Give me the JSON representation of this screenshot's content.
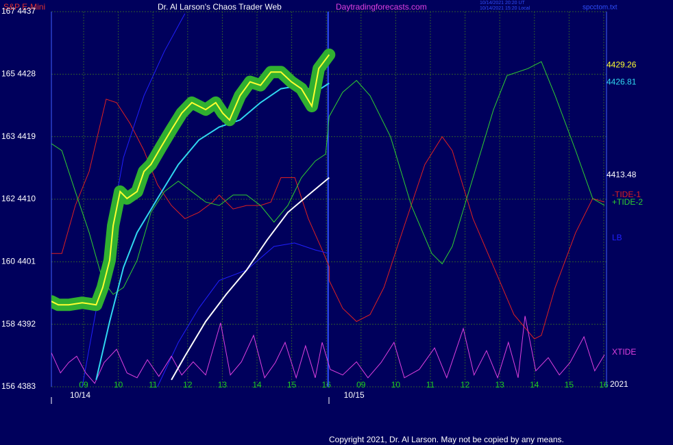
{
  "chart_data": {
    "type": "line",
    "symbol": "S&P E-Mini",
    "title": "Dr. Al Larson's Chaos Trader Web",
    "site": "Daytradingforecasts.com",
    "timestamps": [
      "10/14/2021 20:20 UT",
      "10/14/2021 15:20 Local"
    ],
    "file": "spcctom.txt",
    "year": "2021",
    "copyright": "Copyright 2021, Dr. Al Larson. May not be copied by any means.",
    "date_labels": [
      {
        "value": 8.9,
        "label": "10/14"
      },
      {
        "value": 16.8,
        "label": "10/15"
      }
    ],
    "xlim": [
      8.07,
      24.08
    ],
    "xticks": [
      {
        "value": 9,
        "label": "09"
      },
      10,
      11,
      12,
      13,
      14,
      15,
      16,
      {
        "value": 17,
        "label": "09"
      },
      {
        "value": 18,
        "label": "10"
      },
      {
        "value": 19,
        "label": "11"
      },
      {
        "value": 20,
        "label": "12"
      },
      {
        "value": 21,
        "label": "13"
      },
      {
        "value": 22,
        "label": "14"
      },
      {
        "value": 23,
        "label": "15"
      },
      {
        "value": 24,
        "label": "16"
      }
    ],
    "ylim": [
      4383,
      4437
    ],
    "yticks": [
      {
        "value": 4383,
        "label": "156 4383"
      },
      {
        "value": 4392,
        "label": "158 4392"
      },
      {
        "value": 4401,
        "label": "160 4401"
      },
      {
        "value": 4410,
        "label": "162 4410"
      },
      {
        "value": 4419,
        "label": "163 4419"
      },
      {
        "value": 4428,
        "label": "165 4428"
      },
      {
        "value": 4437,
        "label": "167 4437"
      }
    ],
    "grid": true,
    "series": [
      {
        "name": "-TIDE-1",
        "color": "#e02020",
        "width": 1,
        "x": [
          8.07,
          8.37,
          8.76,
          9.16,
          9.65,
          9.95,
          10.34,
          10.74,
          11.13,
          11.53,
          11.92,
          12.32,
          12.72,
          12.91,
          13.31,
          13.7,
          14.1,
          14.4,
          14.69,
          15.09,
          15.48,
          15.88,
          16.08,
          16.08,
          16.47,
          16.87,
          17.26,
          17.66,
          18.25,
          18.84,
          19.34,
          19.63,
          20.23,
          20.82,
          21.41,
          22.0,
          22.2,
          22.6,
          23.19,
          23.68,
          24.02
        ],
        "values": [
          4402.2,
          4402.2,
          4409.1,
          4414.0,
          4424.4,
          4423.9,
          4420.9,
          4417.0,
          4412.1,
          4409.1,
          4407.2,
          4408.1,
          4409.6,
          4410.6,
          4408.6,
          4409.1,
          4409.1,
          4409.6,
          4413.1,
          4413.1,
          4407.2,
          4402.7,
          4400.3,
          4398.3,
          4394.3,
          4392.4,
          4393.4,
          4397.3,
          4406.2,
          4415.0,
          4419.0,
          4417.0,
          4407.2,
          4400.3,
          4393.4,
          4389.9,
          4390.4,
          4397.3,
          4405.2,
          4410.1,
          4409.6
        ]
      },
      {
        "name": "+TIDE-2",
        "color": "#30d030",
        "width": 1,
        "x": [
          8.07,
          8.37,
          8.76,
          9.16,
          9.55,
          9.85,
          10.15,
          10.54,
          10.94,
          11.33,
          11.73,
          12.12,
          12.52,
          12.91,
          13.31,
          13.7,
          14.1,
          14.49,
          14.89,
          15.28,
          15.68,
          15.98,
          16.08,
          16.47,
          16.87,
          17.26,
          17.85,
          18.45,
          19.04,
          19.34,
          19.63,
          20.23,
          20.82,
          21.21,
          21.81,
          22.2,
          22.6,
          23.19,
          23.68,
          24.02
        ],
        "values": [
          4418.0,
          4417.0,
          4411.1,
          4405.2,
          4398.3,
          4396.3,
          4397.3,
          4401.2,
          4408.1,
          4411.1,
          4412.6,
          4411.1,
          4409.6,
          4409.1,
          4410.6,
          4410.6,
          4409.1,
          4406.7,
          4409.1,
          4413.1,
          4415.5,
          4416.5,
          4421.9,
          4425.4,
          4427.1,
          4424.9,
          4419.0,
          4409.1,
          4402.2,
          4400.7,
          4403.2,
          4413.1,
          4422.9,
          4427.8,
          4428.8,
          4429.8,
          4424.9,
          4417.0,
          4410.1,
          4409.1
        ]
      },
      {
        "name": "LB",
        "color": "#2020ff",
        "width": 1,
        "x": [
          8.96,
          9.55,
          10.15,
          10.74,
          11.33,
          11.92,
          null,
          11.13,
          11.73,
          12.32,
          12.91,
          13.7,
          14.49,
          15.08,
          15.68,
          16.08
        ],
        "values": [
          4383.0,
          4399.3,
          4416.0,
          4424.9,
          4431.3,
          4436.7,
          null,
          4383.0,
          4389.4,
          4394.3,
          4398.3,
          4399.8,
          4403.2,
          4403.7,
          4402.7,
          4402.2
        ]
      },
      {
        "name": "XTIDE",
        "color": "#e040e0",
        "width": 1,
        "x": [
          8.07,
          8.33,
          8.57,
          8.8,
          9.06,
          9.32,
          9.59,
          9.95,
          10.25,
          10.54,
          10.84,
          11.17,
          11.53,
          11.83,
          12.16,
          12.52,
          12.95,
          13.23,
          13.55,
          13.9,
          14.22,
          14.53,
          14.81,
          15.13,
          15.4,
          15.68,
          15.88,
          16.11,
          16.47,
          16.87,
          17.2,
          17.58,
          17.95,
          18.25,
          18.68,
          19.12,
          19.47,
          19.95,
          20.26,
          20.62,
          20.94,
          21.25,
          21.53,
          21.73,
          22.04,
          22.4,
          22.72,
          23.03,
          23.43,
          23.74,
          24.02
        ],
        "values": [
          4387.9,
          4385.0,
          4386.5,
          4387.4,
          4385.0,
          4383.5,
          4386.5,
          4388.4,
          4385.0,
          4384.3,
          4386.9,
          4384.5,
          4387.4,
          4384.7,
          4386.6,
          4384.7,
          4392.2,
          4384.7,
          4386.6,
          4390.4,
          4384.3,
          4386.5,
          4389.4,
          4384.3,
          4388.9,
          4384.3,
          4389.4,
          4385.5,
          4384.7,
          4386.6,
          4384.3,
          4386.5,
          4389.4,
          4384.3,
          4385.5,
          4388.6,
          4384.3,
          4391.4,
          4384.7,
          4388.2,
          4384.3,
          4389.4,
          4384.3,
          4393.2,
          4385.3,
          4387.2,
          4384.7,
          4386.5,
          4390.2,
          4385.3,
          4387.6
        ]
      },
      {
        "color": "#ffffff",
        "width": 2,
        "last": 4413.48,
        "x": [
          11.53,
          11.92,
          12.52,
          13.11,
          13.7,
          14.3,
          14.89,
          15.48,
          16.08
        ],
        "values": [
          4384.0,
          4387.4,
          4392.4,
          4396.3,
          4399.8,
          4404.2,
          4408.1,
          4410.6,
          4413.1
        ]
      },
      {
        "color": "#30d8f0",
        "width": 2,
        "last": 4426.81,
        "x": [
          9.36,
          9.75,
          10.15,
          10.54,
          11.13,
          11.73,
          12.32,
          12.91,
          13.51,
          14.1,
          14.69,
          15.28,
          15.68,
          16.08
        ],
        "values": [
          4384.0,
          4392.4,
          4400.2,
          4405.2,
          4410.1,
          4415.0,
          4418.5,
          4420.4,
          4421.4,
          4423.9,
          4425.9,
          4426.4,
          4425.4,
          4426.7
        ]
      },
      {
        "color": "#ffff30",
        "width": 2,
        "glow": "#30b030",
        "last": 4429.26,
        "x": [
          8.07,
          8.27,
          8.57,
          8.96,
          9.36,
          9.55,
          9.75,
          9.85,
          10.05,
          10.25,
          10.54,
          10.74,
          10.94,
          11.23,
          11.53,
          11.83,
          12.12,
          12.52,
          12.81,
          13.01,
          13.21,
          13.51,
          13.8,
          14.1,
          14.4,
          14.69,
          14.99,
          15.28,
          15.58,
          15.78,
          16.08
        ],
        "values": [
          4395.3,
          4394.8,
          4394.8,
          4395.1,
          4394.8,
          4397.3,
          4401.2,
          4406.2,
          4411.1,
          4410.1,
          4411.1,
          4414.0,
          4415.0,
          4417.5,
          4420.0,
          4422.4,
          4423.9,
          4422.9,
          4423.9,
          4422.4,
          4421.4,
          4424.9,
          4426.9,
          4426.4,
          4428.3,
          4428.3,
          4426.9,
          4425.9,
          4423.4,
          4428.8,
          4430.8
        ]
      }
    ]
  }
}
